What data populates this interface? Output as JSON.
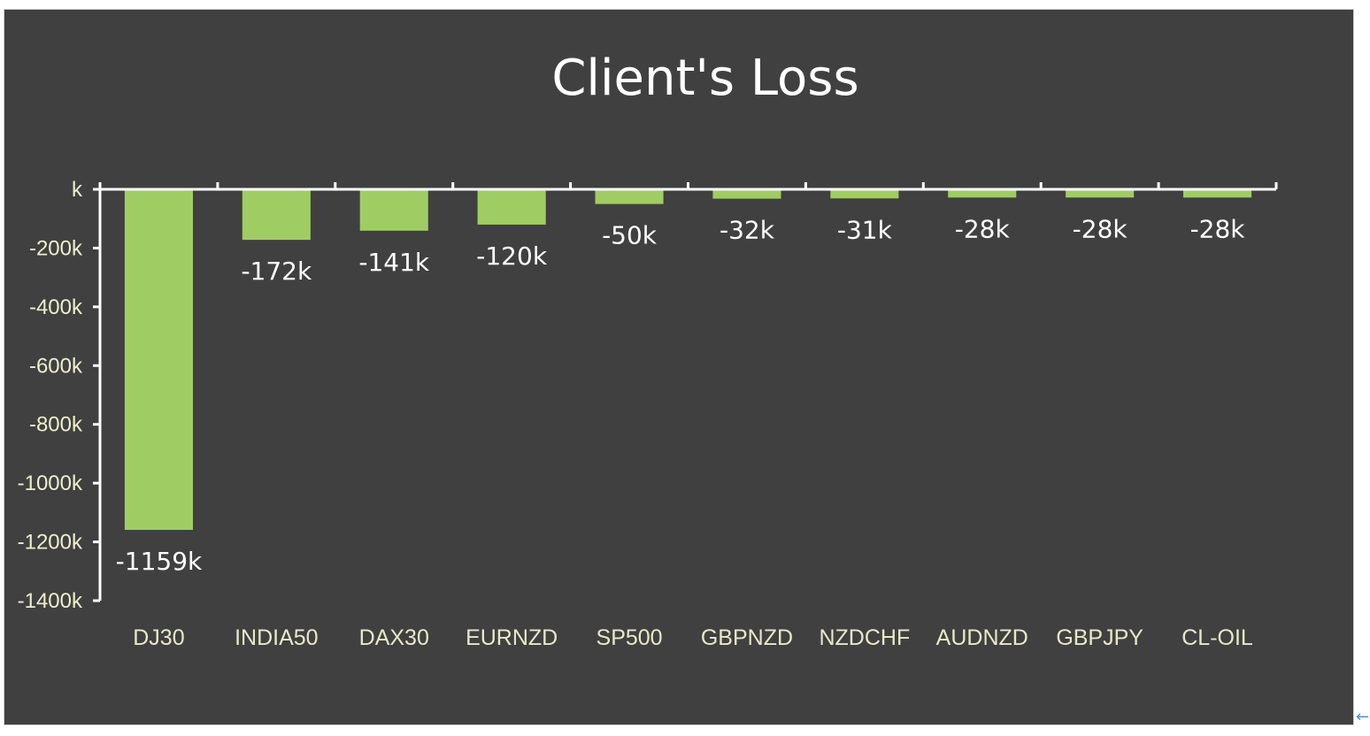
{
  "chart_data": {
    "type": "bar",
    "title": "Client's Loss",
    "xlabel": "",
    "ylabel": "",
    "categories": [
      "DJ30",
      "INDIA50",
      "DAX30",
      "EURNZD",
      "SP500",
      "GBPNZD",
      "NZDCHF",
      "AUDNZD",
      "GBPJPY",
      "CL-OIL"
    ],
    "values": [
      -1159,
      -172,
      -141,
      -120,
      -50,
      -32,
      -31,
      -28,
      -28,
      -28
    ],
    "data_labels": [
      "-1159k",
      "-172k",
      "-141k",
      "-120k",
      "-50k",
      "-32k",
      "-31k",
      "-28k",
      "-28k",
      "-28k"
    ],
    "y_ticks": [
      0,
      -200,
      -400,
      -600,
      -800,
      -1000,
      -1200,
      -1400
    ],
    "y_tick_labels": [
      "k",
      "-200k",
      "-400k",
      "-600k",
      "-800k",
      "-1000k",
      "-1200k",
      "-1400k"
    ],
    "ylim": [
      -1400,
      0
    ],
    "grid": false,
    "legend": "none",
    "colors": {
      "background": "#404040",
      "bar": "#9fcd63",
      "axis": "#ffffff",
      "title": "#ffffff",
      "tick_text": "#eeeecc",
      "data_label": "#ffffff"
    }
  }
}
